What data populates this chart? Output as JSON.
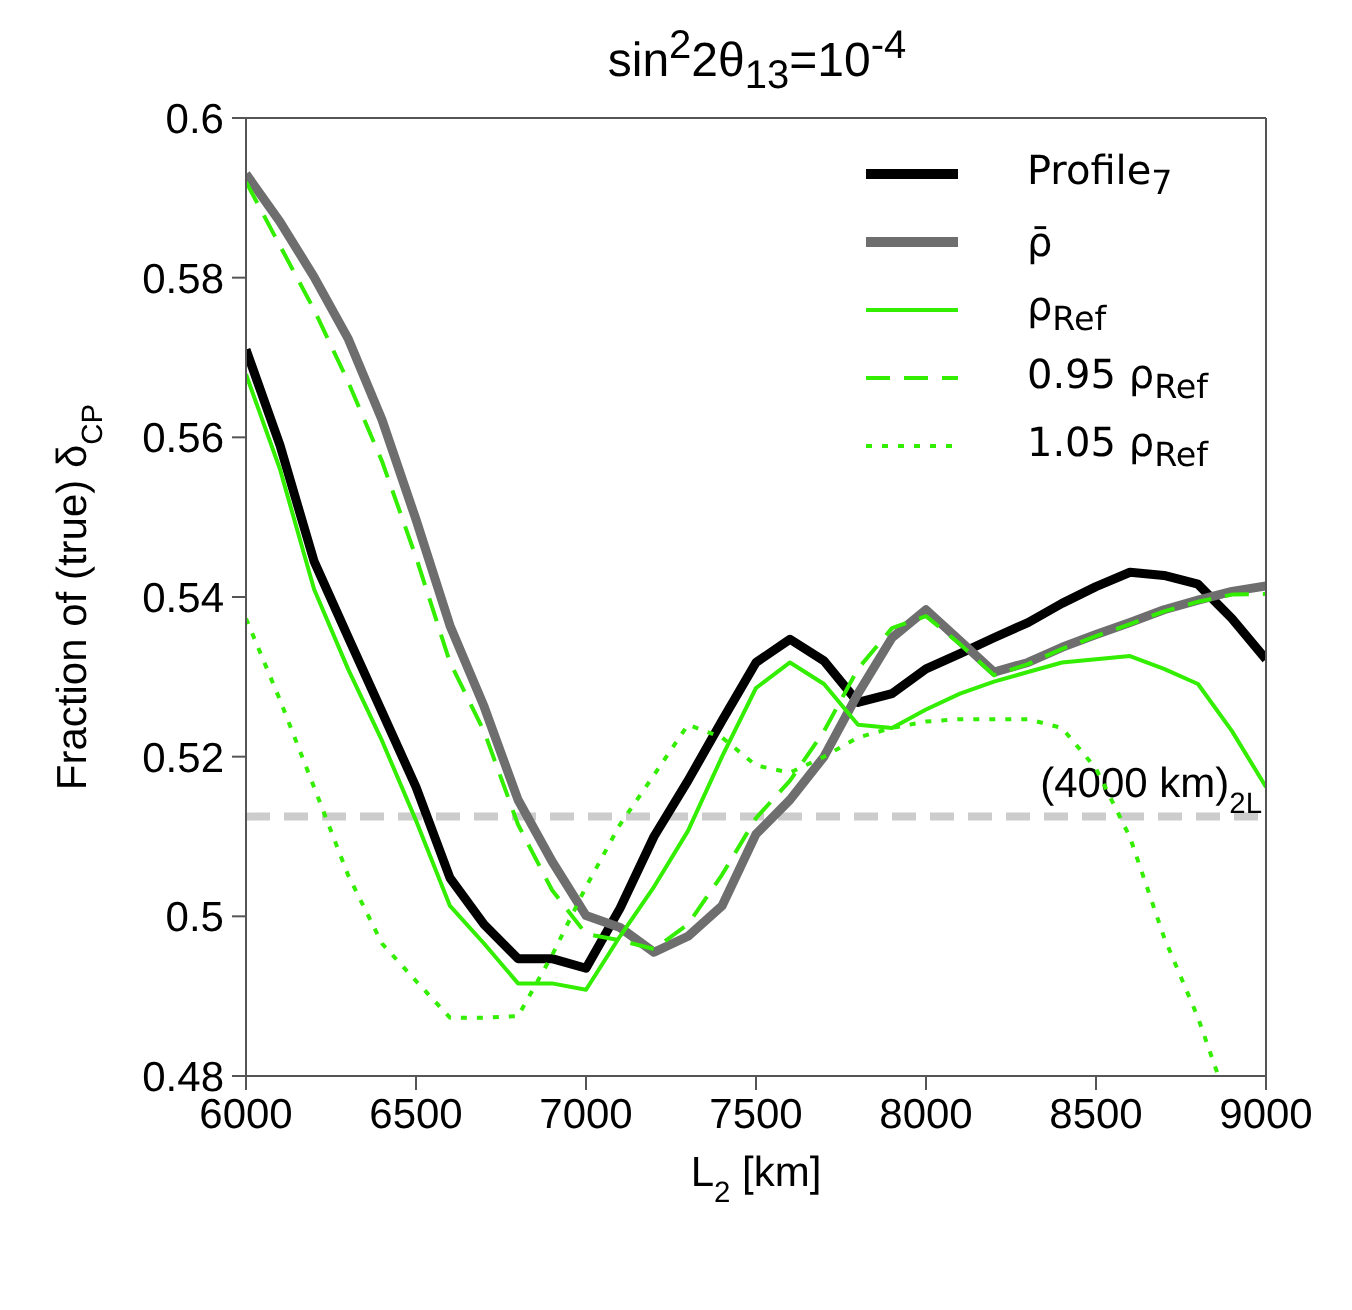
{
  "chart_data": {
    "type": "line",
    "title": "sin$^{2}$2θ$_{13}$=10$^{-4}$",
    "xlabel": "L$_{2}$ [km]",
    "ylabel": "Fraction of (true) δ$_{CP}$",
    "x": [
      6000,
      6100,
      6200,
      6300,
      6400,
      6500,
      6600,
      6700,
      6800,
      6900,
      7000,
      7100,
      7200,
      7300,
      7400,
      7500,
      7600,
      7700,
      7800,
      7900,
      8000,
      8100,
      8200,
      8300,
      8400,
      8500,
      8600,
      8700,
      8800,
      8900,
      9000
    ],
    "series": [
      {
        "name": "Profile$_{7}$",
        "color": "#000000",
        "line_style": "solid",
        "values": [
          0.571,
          0.559,
          0.5445,
          0.535,
          0.5256,
          0.5162,
          0.5048,
          0.499,
          0.4947,
          0.4947,
          0.4935,
          0.501,
          0.51,
          0.517,
          0.5245,
          0.5318,
          0.5347,
          0.532,
          0.5268,
          0.5279,
          0.531,
          0.5329,
          0.5349,
          0.5368,
          0.5392,
          0.5413,
          0.5431,
          0.5427,
          0.5416,
          0.5373,
          0.5322
        ]
      },
      {
        "name": "ρ̄",
        "color": "#6e6e6e",
        "line_style": "solid",
        "values": [
          0.593,
          0.587,
          0.5801,
          0.5724,
          0.5622,
          0.5497,
          0.5364,
          0.5263,
          0.5146,
          0.5069,
          0.5001,
          0.4986,
          0.4955,
          0.4975,
          0.5013,
          0.5103,
          0.5146,
          0.52,
          0.5279,
          0.5349,
          0.5384,
          0.5345,
          0.5306,
          0.5318,
          0.5337,
          0.5353,
          0.5368,
          0.5384,
          0.5396,
          0.5407,
          0.5414
        ]
      },
      {
        "name": "ρ$_{Ref}$",
        "color": "#33ee00",
        "line_style": "solid",
        "values": [
          0.5679,
          0.556,
          0.541,
          0.531,
          0.522,
          0.512,
          0.5013,
          0.4966,
          0.4916,
          0.4916,
          0.4908,
          0.4975,
          0.5037,
          0.5107,
          0.52,
          0.5286,
          0.5318,
          0.5291,
          0.524,
          0.5236,
          0.5259,
          0.5279,
          0.5294,
          0.5306,
          0.5318,
          0.5322,
          0.5326,
          0.531,
          0.5291,
          0.5232,
          0.5162
        ]
      },
      {
        "name": "0.95 ρ$_{Ref}$",
        "color": "#33ee00",
        "line_style": "dashed",
        "values": [
          0.592,
          0.584,
          0.576,
          0.567,
          0.557,
          0.545,
          0.5318,
          0.5232,
          0.5115,
          0.5033,
          0.4978,
          0.497,
          0.4959,
          0.499,
          0.5052,
          0.5123,
          0.517,
          0.5232,
          0.531,
          0.5361,
          0.5376,
          0.5341,
          0.5302,
          0.5316,
          0.5335,
          0.5351,
          0.5366,
          0.5382,
          0.5394,
          0.5403,
          0.5404
        ]
      },
      {
        "name": "1.05 ρ$_{Ref}$",
        "color": "#33ee00",
        "line_style": "dotted",
        "x": [
          6000,
          6100,
          6200,
          6300,
          6400,
          6500,
          6600,
          6700,
          6800,
          6900,
          7000,
          7100,
          7200,
          7300,
          7400,
          7500,
          7600,
          7700,
          7800,
          7900,
          8000,
          8100,
          8200,
          8300,
          8400,
          8500,
          8600,
          8700,
          8800,
          8860
        ],
        "values": [
          0.5373,
          0.5271,
          0.5162,
          0.5052,
          0.4966,
          0.4919,
          0.4873,
          0.4873,
          0.4875,
          0.4951,
          0.5037,
          0.5115,
          0.5177,
          0.524,
          0.5224,
          0.5189,
          0.518,
          0.52,
          0.5224,
          0.5236,
          0.5244,
          0.5247,
          0.5247,
          0.5247,
          0.5236,
          0.5185,
          0.5099,
          0.4974,
          0.4873,
          0.48
        ]
      }
    ],
    "ref_lines": [
      {
        "axis": "y",
        "value": 0.5125,
        "label": "(4000 km)$_{2L}$",
        "color": "#cccccc",
        "line_style": "dashed"
      }
    ],
    "xlim": [
      6000,
      9000
    ],
    "xticks": [
      6000,
      6500,
      7000,
      7500,
      8000,
      8500,
      9000
    ],
    "ylim": [
      0.48,
      0.6
    ],
    "yticks": [
      0.48,
      {
        "value": 0.5,
        "label": "0.5"
      },
      0.52,
      0.54,
      0.56,
      0.58,
      {
        "value": 0.6,
        "label": "0.6"
      }
    ],
    "grid": false,
    "legend": "top right",
    "marker": "none"
  }
}
